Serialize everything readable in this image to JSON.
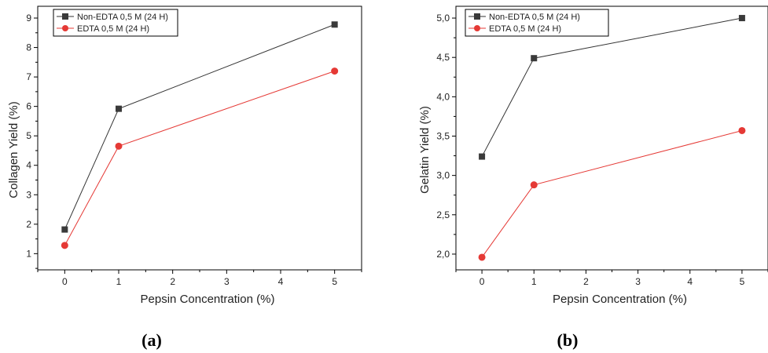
{
  "chart_data": [
    {
      "type": "line",
      "caption": "(a)",
      "xlabel": "Pepsin Concentration (%)",
      "ylabel": "Collagen Yield (%)",
      "xlim": [
        -0.5,
        5.5
      ],
      "ylim": [
        0.45,
        9.4
      ],
      "x_ticks": [
        0,
        1,
        2,
        3,
        4,
        5
      ],
      "x_tick_labels": [
        "0",
        "1",
        "2",
        "3",
        "4",
        "5"
      ],
      "y_ticks": [
        1,
        2,
        3,
        4,
        5,
        6,
        7,
        8,
        9
      ],
      "y_tick_labels": [
        "1",
        "2",
        "3",
        "4",
        "5",
        "6",
        "7",
        "8",
        "9"
      ],
      "legend_position": "top-left",
      "grid": false,
      "series": [
        {
          "name": "Non-EDTA 0,5 M (24 H)",
          "marker": "square",
          "line_color": "#333333",
          "marker_color": "#3a3a3a",
          "x": [
            0,
            1,
            5
          ],
          "y": [
            1.82,
            5.92,
            8.78
          ]
        },
        {
          "name": "EDTA 0,5 M (24 H)",
          "marker": "circle",
          "line_color": "#e53935",
          "marker_color": "#e53935",
          "x": [
            0,
            1,
            5
          ],
          "y": [
            1.28,
            4.65,
            7.2
          ]
        }
      ]
    },
    {
      "type": "line",
      "caption": "(b)",
      "xlabel": "Pepsin Concentration (%)",
      "ylabel": "Gelatin Yield (%)",
      "xlim": [
        -0.5,
        5.5
      ],
      "ylim": [
        1.8,
        5.15
      ],
      "x_ticks": [
        0,
        1,
        2,
        3,
        4,
        5
      ],
      "x_tick_labels": [
        "0",
        "1",
        "2",
        "3",
        "4",
        "5"
      ],
      "y_ticks": [
        2.0,
        2.5,
        3.0,
        3.5,
        4.0,
        4.5,
        5.0
      ],
      "y_tick_labels": [
        "2,0",
        "2,5",
        "3,0",
        "3,5",
        "4,0",
        "4,5",
        "5,0"
      ],
      "legend_position": "top-left",
      "grid": false,
      "series": [
        {
          "name": "Non-EDTA 0,5 M (24 H)",
          "marker": "square",
          "line_color": "#333333",
          "marker_color": "#3a3a3a",
          "x": [
            0,
            1,
            5
          ],
          "y": [
            3.24,
            4.49,
            5.0
          ]
        },
        {
          "name": "EDTA 0,5 M (24 H)",
          "marker": "circle",
          "line_color": "#e53935",
          "marker_color": "#e53935",
          "x": [
            0,
            1,
            5
          ],
          "y": [
            1.96,
            2.88,
            3.57
          ]
        }
      ]
    }
  ]
}
